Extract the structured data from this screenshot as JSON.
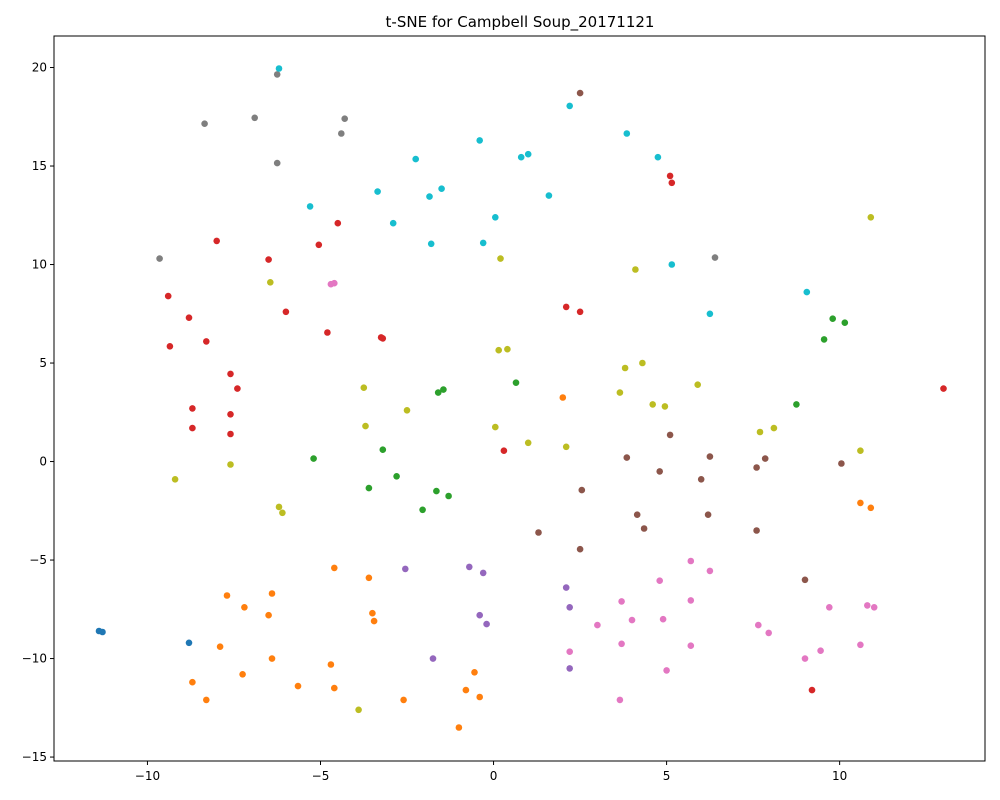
{
  "chart_data": {
    "type": "scatter",
    "title": "t-SNE for Campbell Soup_20171121",
    "xlabel": "",
    "ylabel": "",
    "xlim": [
      -12.7,
      14.2
    ],
    "ylim": [
      -15.2,
      21.6
    ],
    "x_ticks": [
      -10,
      -5,
      0,
      5,
      10
    ],
    "y_ticks": [
      -15,
      -10,
      -5,
      0,
      5,
      10,
      15,
      20
    ],
    "grid": false,
    "series": [
      {
        "color": "#1f77b4",
        "points": [
          [
            -11.4,
            -8.6
          ],
          [
            -11.3,
            -8.65
          ],
          [
            -8.8,
            -9.2
          ]
        ]
      },
      {
        "color": "#ff7f0e",
        "points": [
          [
            -7.7,
            -6.8
          ],
          [
            -7.2,
            -7.4
          ],
          [
            -6.4,
            -6.7
          ],
          [
            -6.5,
            -7.8
          ],
          [
            -4.6,
            -5.4
          ],
          [
            -3.6,
            -5.9
          ],
          [
            -3.5,
            -7.7
          ],
          [
            -3.45,
            -8.1
          ],
          [
            -7.9,
            -9.4
          ],
          [
            -6.4,
            -10.0
          ],
          [
            -8.7,
            -11.2
          ],
          [
            -7.25,
            -10.8
          ],
          [
            -5.65,
            -11.4
          ],
          [
            -8.3,
            -12.1
          ],
          [
            -4.7,
            -10.3
          ],
          [
            -4.6,
            -11.5
          ],
          [
            -2.6,
            -12.1
          ],
          [
            -0.8,
            -11.6
          ],
          [
            -0.55,
            -10.7
          ],
          [
            -0.4,
            -11.95
          ],
          [
            -1.0,
            -13.5
          ],
          [
            2.0,
            3.25
          ],
          [
            10.6,
            -2.1
          ],
          [
            10.9,
            -2.35
          ]
        ]
      },
      {
        "color": "#2ca02c",
        "points": [
          [
            -5.2,
            0.15
          ],
          [
            -3.2,
            0.6
          ],
          [
            -2.8,
            -0.75
          ],
          [
            -3.6,
            -1.35
          ],
          [
            -1.6,
            3.5
          ],
          [
            -1.45,
            3.65
          ],
          [
            0.65,
            4.0
          ],
          [
            -1.65,
            -1.5
          ],
          [
            -1.3,
            -1.75
          ],
          [
            -2.05,
            -2.45
          ],
          [
            9.55,
            6.2
          ],
          [
            9.8,
            7.25
          ],
          [
            10.15,
            7.05
          ],
          [
            8.75,
            2.9
          ]
        ]
      },
      {
        "color": "#d62728",
        "points": [
          [
            -8.0,
            11.2
          ],
          [
            -6.5,
            10.25
          ],
          [
            -5.05,
            11.0
          ],
          [
            -4.5,
            12.1
          ],
          [
            -9.4,
            8.4
          ],
          [
            -8.8,
            7.3
          ],
          [
            -8.3,
            6.1
          ],
          [
            -9.35,
            5.85
          ],
          [
            -6.0,
            7.6
          ],
          [
            -4.8,
            6.55
          ],
          [
            -3.25,
            6.3
          ],
          [
            -3.2,
            6.25
          ],
          [
            -7.6,
            4.45
          ],
          [
            -7.4,
            3.7
          ],
          [
            -8.7,
            2.7
          ],
          [
            -7.6,
            2.4
          ],
          [
            -8.7,
            1.7
          ],
          [
            -7.6,
            1.4
          ],
          [
            5.1,
            14.5
          ],
          [
            5.15,
            14.15
          ],
          [
            2.1,
            7.85
          ],
          [
            2.5,
            7.6
          ],
          [
            0.3,
            0.55
          ],
          [
            13.0,
            3.7
          ],
          [
            9.2,
            -11.6
          ]
        ]
      },
      {
        "color": "#9467bd",
        "points": [
          [
            -2.55,
            -5.45
          ],
          [
            -0.7,
            -5.35
          ],
          [
            -0.3,
            -5.65
          ],
          [
            -0.4,
            -7.8
          ],
          [
            -0.2,
            -8.25
          ],
          [
            -1.75,
            -10.0
          ],
          [
            2.1,
            -6.4
          ],
          [
            2.2,
            -7.4
          ],
          [
            2.2,
            -10.5
          ]
        ]
      },
      {
        "color": "#8c564b",
        "points": [
          [
            2.5,
            18.7
          ],
          [
            5.1,
            1.35
          ],
          [
            3.85,
            0.2
          ],
          [
            4.8,
            -0.5
          ],
          [
            6.25,
            0.25
          ],
          [
            6.0,
            -0.9
          ],
          [
            7.6,
            -0.3
          ],
          [
            7.85,
            0.15
          ],
          [
            10.05,
            -0.1
          ],
          [
            2.55,
            -1.45
          ],
          [
            4.15,
            -2.7
          ],
          [
            4.35,
            -3.4
          ],
          [
            6.2,
            -2.7
          ],
          [
            7.6,
            -3.5
          ],
          [
            1.3,
            -3.6
          ],
          [
            2.5,
            -4.45
          ],
          [
            9.0,
            -6.0
          ]
        ]
      },
      {
        "color": "#e377c2",
        "points": [
          [
            -4.7,
            9.0
          ],
          [
            -4.6,
            9.05
          ],
          [
            5.7,
            -5.05
          ],
          [
            6.25,
            -5.55
          ],
          [
            4.8,
            -6.05
          ],
          [
            3.7,
            -7.1
          ],
          [
            5.7,
            -7.05
          ],
          [
            9.7,
            -7.4
          ],
          [
            10.8,
            -7.3
          ],
          [
            11.0,
            -7.4
          ],
          [
            3.0,
            -8.3
          ],
          [
            4.0,
            -8.05
          ],
          [
            4.9,
            -8.0
          ],
          [
            7.65,
            -8.3
          ],
          [
            7.95,
            -8.7
          ],
          [
            3.7,
            -9.25
          ],
          [
            5.7,
            -9.35
          ],
          [
            2.2,
            -9.65
          ],
          [
            9.45,
            -9.6
          ],
          [
            10.6,
            -9.3
          ],
          [
            9.0,
            -10.0
          ],
          [
            5.0,
            -10.6
          ],
          [
            3.65,
            -12.1
          ]
        ]
      },
      {
        "color": "#7f7f7f",
        "points": [
          [
            -6.25,
            19.65
          ],
          [
            -8.35,
            17.15
          ],
          [
            -6.9,
            17.45
          ],
          [
            -4.3,
            17.4
          ],
          [
            -4.4,
            16.65
          ],
          [
            -6.25,
            15.15
          ],
          [
            -9.65,
            10.3
          ],
          [
            6.4,
            10.35
          ]
        ]
      },
      {
        "color": "#bcbd22",
        "points": [
          [
            10.9,
            12.4
          ],
          [
            0.2,
            10.3
          ],
          [
            4.1,
            9.75
          ],
          [
            -6.45,
            9.1
          ],
          [
            0.15,
            5.65
          ],
          [
            0.4,
            5.7
          ],
          [
            3.8,
            4.75
          ],
          [
            4.3,
            5.0
          ],
          [
            -3.75,
            3.75
          ],
          [
            3.65,
            3.5
          ],
          [
            5.9,
            3.9
          ],
          [
            -2.5,
            2.6
          ],
          [
            4.6,
            2.9
          ],
          [
            4.95,
            2.8
          ],
          [
            -3.7,
            1.8
          ],
          [
            0.05,
            1.75
          ],
          [
            7.7,
            1.5
          ],
          [
            8.1,
            1.7
          ],
          [
            1.0,
            0.95
          ],
          [
            2.1,
            0.75
          ],
          [
            10.6,
            0.55
          ],
          [
            -7.6,
            -0.15
          ],
          [
            -9.2,
            -0.9
          ],
          [
            -6.2,
            -2.3
          ],
          [
            -6.1,
            -2.6
          ],
          [
            -3.9,
            -12.6
          ]
        ]
      },
      {
        "color": "#17becf",
        "points": [
          [
            -6.2,
            19.95
          ],
          [
            2.2,
            18.05
          ],
          [
            3.85,
            16.65
          ],
          [
            -0.4,
            16.3
          ],
          [
            4.75,
            15.45
          ],
          [
            0.8,
            15.45
          ],
          [
            1.0,
            15.6
          ],
          [
            -2.25,
            15.35
          ],
          [
            -1.5,
            13.85
          ],
          [
            -3.35,
            13.7
          ],
          [
            -1.85,
            13.45
          ],
          [
            1.6,
            13.5
          ],
          [
            -5.3,
            12.95
          ],
          [
            -2.9,
            12.1
          ],
          [
            0.05,
            12.4
          ],
          [
            -1.8,
            11.05
          ],
          [
            -0.3,
            11.1
          ],
          [
            5.15,
            10.0
          ],
          [
            9.05,
            8.6
          ],
          [
            6.25,
            7.5
          ]
        ]
      }
    ]
  }
}
